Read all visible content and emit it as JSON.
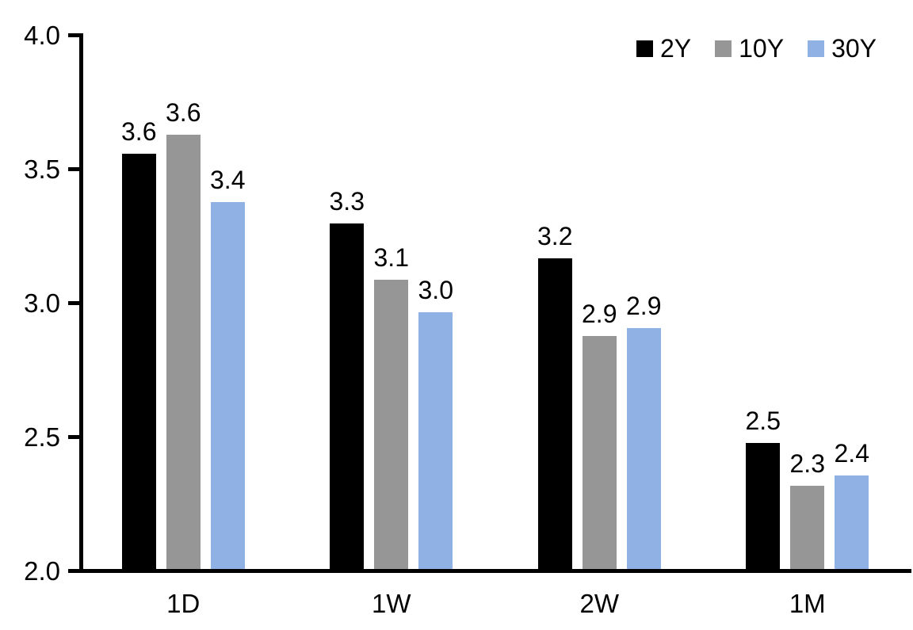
{
  "chart_data": {
    "type": "bar",
    "title": "",
    "xlabel": "",
    "ylabel": "",
    "categories": [
      "1D",
      "1W",
      "2W",
      "1M"
    ],
    "series": [
      {
        "name": "2Y",
        "color": "#000000",
        "values": [
          3.55,
          3.29,
          3.16,
          2.47
        ],
        "labels": [
          "3.6",
          "3.3",
          "3.2",
          "2.5"
        ]
      },
      {
        "name": "10Y",
        "color": "#969696",
        "values": [
          3.62,
          3.08,
          2.87,
          2.31
        ],
        "labels": [
          "3.6",
          "3.1",
          "2.9",
          "2.3"
        ]
      },
      {
        "name": "30Y",
        "color": "#8FB1E3",
        "values": [
          3.37,
          2.96,
          2.9,
          2.35
        ],
        "labels": [
          "3.4",
          "3.0",
          "2.9",
          "2.4"
        ]
      }
    ],
    "ylim": [
      2.0,
      4.0
    ],
    "ytick_interval": 0.5,
    "yticks": [
      "4.0",
      "3.5",
      "3.0",
      "2.5",
      "2.0"
    ],
    "ytick_values": [
      4.0,
      3.5,
      3.0,
      2.5,
      2.0
    ],
    "grid": false,
    "legend_position": "top-right",
    "background_color": "#ffffff",
    "axis_color": "#000000",
    "text_color": "#000000"
  }
}
